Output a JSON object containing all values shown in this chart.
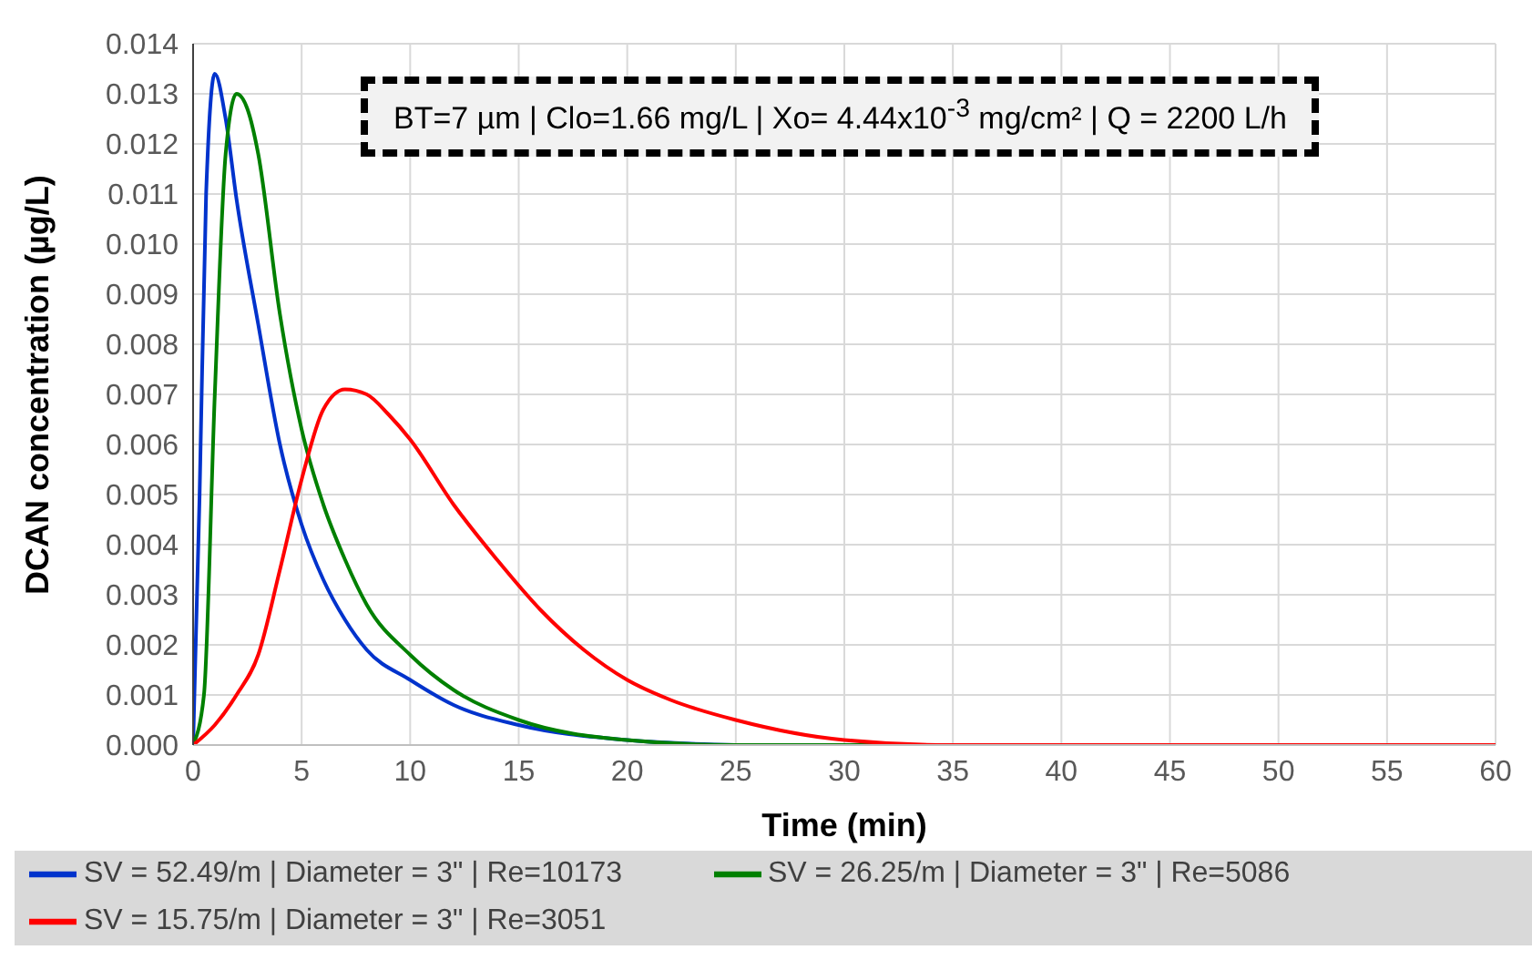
{
  "chart_data": {
    "type": "line",
    "xlabel": "Time (min)",
    "ylabel": "DCAN concentration (µg/L)",
    "annotations": [
      "BT=7 µm | Clo=1.66 mg/L | Xo= 4.44x10$^{-3}$ mg/cm² | Q = 2200 L/h"
    ],
    "xlim": [
      0,
      60
    ],
    "xticks": [
      0,
      5,
      10,
      15,
      20,
      25,
      30,
      35,
      40,
      45,
      50,
      55,
      60
    ],
    "ylim": [
      0,
      0.014
    ],
    "yticks": [
      {
        "value": 0,
        "label": "0.000"
      },
      {
        "value": 0.001,
        "label": "0.001"
      },
      {
        "value": 0.002,
        "label": "0.002"
      },
      {
        "value": 0.003,
        "label": "0.003"
      },
      {
        "value": 0.004,
        "label": "0.004"
      },
      {
        "value": 0.005,
        "label": "0.005"
      },
      {
        "value": 0.006,
        "label": "0.006"
      },
      {
        "value": 0.007,
        "label": "0.007"
      },
      {
        "value": 0.008,
        "label": "0.008"
      },
      {
        "value": 0.009,
        "label": "0.009"
      },
      {
        "value": 0.01,
        "label": "0.010"
      },
      {
        "value": 0.011,
        "label": "0.011"
      },
      {
        "value": 0.012,
        "label": "0.012"
      },
      {
        "value": 0.013,
        "label": "0.013"
      },
      {
        "value": 0.014,
        "label": "0.014"
      }
    ],
    "grid": true,
    "legend": "bottom",
    "marker": "none",
    "line_style": "solid",
    "series": [
      {
        "name": "SV = 52.49/m | Diameter = 3\" | Re=10173",
        "color": "#0033cc",
        "x": [
          0,
          0.3,
          0.6,
          1,
          1.5,
          2,
          3,
          4,
          5,
          6,
          7,
          8,
          10,
          12,
          15,
          20,
          25
        ],
        "values": [
          0,
          0.005,
          0.011,
          0.0134,
          0.0125,
          0.0109,
          0.0084,
          0.006,
          0.0044,
          0.0033,
          0.0025,
          0.0019,
          0.0013,
          0.0008,
          0.0004,
          0.0001,
          0
        ]
      },
      {
        "name": "SV = 26.25/m | Diameter = 3\" | Re=5086",
        "color": "#008000",
        "x": [
          0,
          0.5,
          1,
          1.5,
          2,
          2.5,
          3,
          4,
          5,
          6,
          7,
          8,
          10,
          12,
          15,
          20,
          25,
          30,
          60
        ],
        "values": [
          0,
          0.001,
          0.007,
          0.0118,
          0.013,
          0.0127,
          0.0118,
          0.0086,
          0.0063,
          0.0048,
          0.0037,
          0.0028,
          0.0018,
          0.0011,
          0.0005,
          0.0001,
          0,
          0,
          0
        ]
      },
      {
        "name": "SV = 15.75/m | Diameter = 3\" | Re=3051",
        "color": "#ff0000",
        "x": [
          0,
          1,
          2,
          3,
          4,
          5,
          6,
          7,
          8,
          9,
          10,
          12,
          14,
          16,
          18,
          20,
          22,
          25,
          30,
          35,
          40,
          60
        ],
        "values": [
          0,
          0.0004,
          0.001,
          0.0018,
          0.0035,
          0.0053,
          0.0067,
          0.0071,
          0.007,
          0.0066,
          0.0061,
          0.0048,
          0.0037,
          0.0027,
          0.0019,
          0.0013,
          0.0009,
          0.0005,
          0.0001,
          0,
          0,
          0
        ]
      }
    ]
  }
}
